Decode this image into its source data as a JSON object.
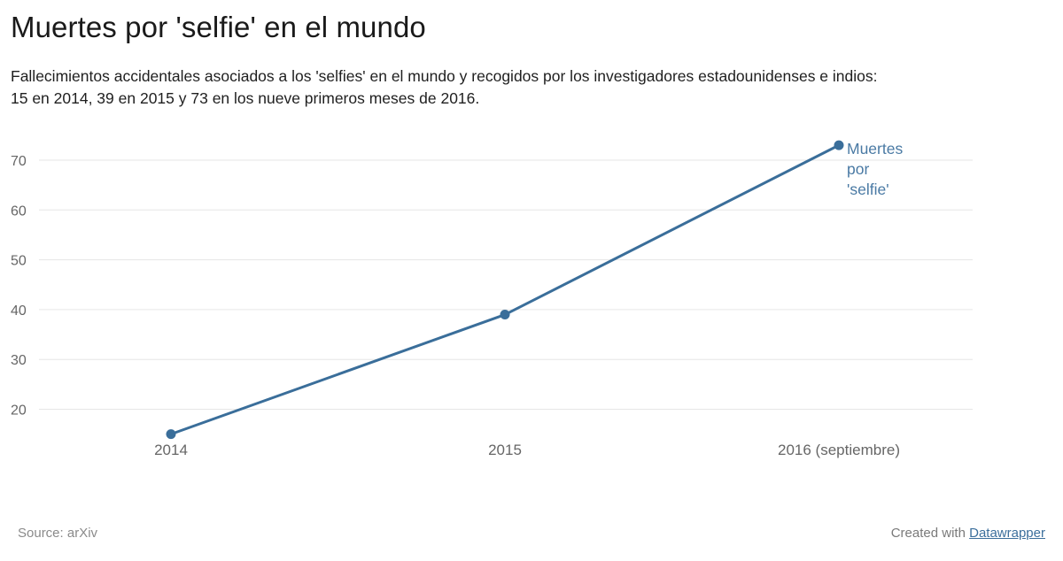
{
  "header": {
    "title": "Muertes por 'selfie' en el mundo",
    "subtitle_line1": "Fallecimientos accidentales asociados a los 'selfies' en el mundo y recogidos por los investigadores estadounidenses e indios:",
    "subtitle_line2": "15 en 2014, 39 en 2015 y 73 en los nueve primeros meses de 2016."
  },
  "footer": {
    "source": "Source: arXiv",
    "created_with": "Created with",
    "tool_link": "Datawrapper"
  },
  "colors": {
    "line": "#3a6e9a",
    "label": "#4a7aa4",
    "grid": "#e6e6e6",
    "tick": "#666666"
  },
  "chart_data": {
    "type": "line",
    "categories": [
      "2014",
      "2015",
      "2016 (septiembre)"
    ],
    "series": [
      {
        "name": "Muertes por 'selfie'",
        "label_lines": [
          "Muertes",
          "por",
          "'selfie'"
        ],
        "values": [
          15,
          39,
          73
        ]
      }
    ],
    "yticks": [
      20,
      30,
      40,
      50,
      60,
      70
    ],
    "ylim": [
      15,
      73
    ],
    "grid": true,
    "legend": "inline-end-label"
  }
}
